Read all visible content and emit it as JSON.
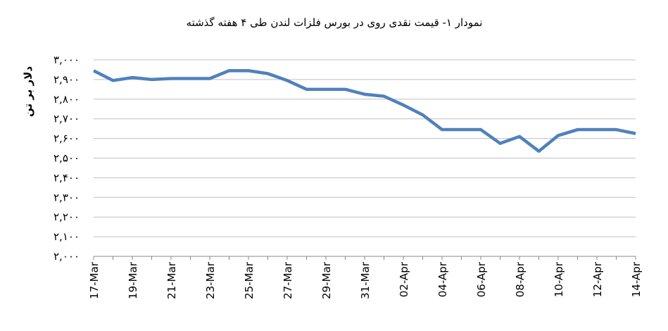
{
  "chart_data": {
    "type": "line",
    "title": "نمودار ۱- قیمت نقدی روی  در بورس فلزات لندن طی ۴ هفته گذشته",
    "y_label": "دلار بر تن",
    "categories": [
      "17-Mar",
      null,
      "19-Mar",
      null,
      "21-Mar",
      null,
      "23-Mar",
      null,
      "25-Mar",
      null,
      "27-Mar",
      null,
      "29-Mar",
      null,
      "31-Mar",
      null,
      "02-Apr",
      null,
      "04-Apr",
      null,
      "06-Apr",
      null,
      "08-Apr",
      null,
      "10-Apr",
      null,
      "12-Apr",
      null,
      "14-Apr"
    ],
    "series": [
      {
        "name": "روی",
        "color": "#4f81bd",
        "values": [
          2945,
          2895,
          2910,
          2900,
          2905,
          2905,
          2905,
          2945,
          2945,
          2930,
          2895,
          2850,
          2850,
          2850,
          2825,
          2815,
          2770,
          2720,
          2645,
          2645,
          2645,
          2575,
          2610,
          2535,
          2615,
          2645,
          2645,
          2645,
          2625
        ]
      }
    ],
    "ylim": [
      2000,
      3000
    ],
    "yticks": [
      {
        "value": 2000,
        "label": "۲,۰۰۰"
      },
      {
        "value": 2100,
        "label": "۲,۱۰۰"
      },
      {
        "value": 2200,
        "label": "۲,۲۰۰"
      },
      {
        "value": 2300,
        "label": "۲,۳۰۰"
      },
      {
        "value": 2400,
        "label": "۲,۴۰۰"
      },
      {
        "value": 2500,
        "label": "۲,۵۰۰"
      },
      {
        "value": 2600,
        "label": "۲,۶۰۰"
      },
      {
        "value": 2700,
        "label": "۲,۷۰۰"
      },
      {
        "value": 2800,
        "label": "۲,۸۰۰"
      },
      {
        "value": 2900,
        "label": "۲,۹۰۰"
      },
      {
        "value": 3000,
        "label": "۳,۰۰۰"
      }
    ],
    "grid": true
  }
}
